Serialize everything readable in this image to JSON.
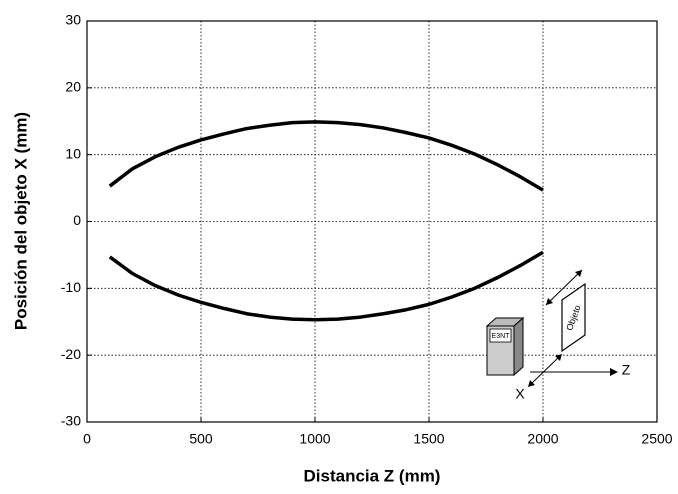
{
  "chart_data": {
    "type": "line",
    "xlabel": "Distancia Z (mm)",
    "ylabel": "Posición del objeto  X (mm)",
    "x": [
      100,
      200,
      300,
      400,
      500,
      600,
      700,
      800,
      900,
      1000,
      1100,
      1200,
      1300,
      1400,
      1500,
      1600,
      1700,
      1800,
      1900,
      2000
    ],
    "series": [
      {
        "color": "#000000",
        "values": [
          5.3,
          7.9,
          9.7,
          11.1,
          12.2,
          13.1,
          13.9,
          14.4,
          14.8,
          14.9,
          14.8,
          14.5,
          14.0,
          13.3,
          12.5,
          11.4,
          10.1,
          8.5,
          6.7,
          4.7
        ]
      },
      {
        "color": "#000000",
        "values": [
          -5.3,
          -7.8,
          -9.6,
          -11.0,
          -12.1,
          -13.0,
          -13.8,
          -14.3,
          -14.6,
          -14.7,
          -14.6,
          -14.3,
          -13.8,
          -13.2,
          -12.4,
          -11.3,
          -10.0,
          -8.4,
          -6.6,
          -4.6
        ]
      }
    ],
    "xlim": [
      0,
      2500
    ],
    "xticks": [
      0,
      500,
      1000,
      1500,
      2000,
      2500
    ],
    "ylim": [
      -30,
      30
    ],
    "yticks": [
      -30,
      -20,
      -10,
      0,
      10,
      20,
      30
    ],
    "grid": true,
    "annotations": {
      "sensor": "E3NT",
      "object": "Objeto",
      "z_axis": "Z",
      "x_axis": "X"
    }
  }
}
